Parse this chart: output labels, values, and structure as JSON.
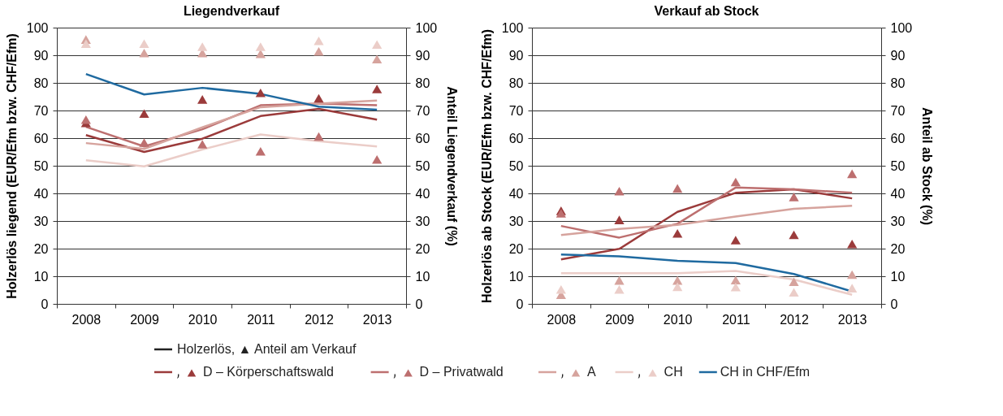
{
  "chart_data": [
    {
      "type": "line",
      "title": "Liegendverkauf",
      "ylabel": "Holzerlös liegend (EUR/Efm bzw. CHF/Efm)",
      "y2label": "Anteil Liegendverkauf (%)",
      "legend_title": "Holzerlös, ▲ Anteil am Verkauf",
      "legend": "bottom",
      "grid": "y",
      "line_style": "solid",
      "categories": [
        "2008",
        "2009",
        "2010",
        "2011",
        "2012",
        "2013"
      ],
      "ylim": [
        0,
        100
      ],
      "yticks": [
        0,
        10,
        20,
        30,
        40,
        50,
        60,
        70,
        80,
        90,
        100
      ],
      "y2lim": [
        0,
        100
      ],
      "y2ticks": [
        0,
        10,
        20,
        30,
        40,
        50,
        60,
        70,
        80,
        90,
        100
      ],
      "series": [
        {
          "name": "D – Körperschaftswald",
          "type": "line",
          "marker": "none",
          "color": "#9b3b3b",
          "values": [
            61.1,
            55.0,
            59.8,
            68.0,
            70.6,
            66.7
          ]
        },
        {
          "name": "D – Privatwald",
          "type": "line",
          "marker": "none",
          "color": "#bd6f6f",
          "values": [
            64.1,
            57.0,
            63.2,
            71.9,
            72.5,
            71.9
          ]
        },
        {
          "name": "A",
          "type": "line",
          "marker": "none",
          "color": "#d6a39d",
          "values": [
            58.2,
            56.1,
            63.9,
            71.2,
            72.5,
            73.6
          ]
        },
        {
          "name": "CH",
          "type": "line",
          "marker": "none",
          "color": "#ebcdc8",
          "values": [
            52.0,
            49.8,
            55.9,
            61.3,
            58.9,
            57.0
          ]
        },
        {
          "name": "CH in CHF/Efm",
          "type": "line",
          "marker": "none",
          "color": "#1f6aa0",
          "values": [
            83.2,
            75.8,
            78.2,
            76.0,
            71.4,
            70.3
          ]
        },
        {
          "type": "scatter",
          "axis": "y2",
          "marker": "triangle",
          "color": "#9b3b3b",
          "values": [
            65.5,
            68.9,
            74.0,
            76.4,
            74.4,
            77.8
          ]
        },
        {
          "type": "scatter",
          "axis": "y2",
          "marker": "triangle",
          "color": "#bd6f6f",
          "values": [
            66.7,
            58.4,
            57.8,
            55.2,
            60.6,
            52.3
          ]
        },
        {
          "type": "scatter",
          "axis": "y2",
          "marker": "triangle",
          "color": "#d6a39d",
          "values": [
            95.7,
            90.8,
            90.8,
            90.5,
            91.4,
            88.6
          ]
        },
        {
          "type": "scatter",
          "axis": "y2",
          "marker": "triangle",
          "color": "#ebcdc8",
          "values": [
            94.2,
            94.2,
            93.1,
            93.1,
            95.2,
            93.9
          ]
        }
      ]
    },
    {
      "type": "line",
      "title": "Verkauf ab Stock",
      "ylabel": "Holzerlös ab Stock (EUR/Efm bzw. CHF/Efm)",
      "y2label": "Anteil ab Stock (%)",
      "legend": "bottom",
      "grid": "y",
      "line_style": "solid",
      "categories": [
        "2008",
        "2009",
        "2010",
        "2011",
        "2012",
        "2013"
      ],
      "ylim": [
        0,
        100
      ],
      "yticks": [
        0,
        10,
        20,
        30,
        40,
        50,
        60,
        70,
        80,
        90,
        100
      ],
      "y2lim": [
        0,
        100
      ],
      "y2ticks": [
        0,
        10,
        20,
        30,
        40,
        50,
        60,
        70,
        80,
        90,
        100
      ],
      "series": [
        {
          "name": "D – Körperschaftswald",
          "type": "line",
          "marker": "none",
          "color": "#9b3b3b",
          "values": [
            16.1,
            19.9,
            33.3,
            40.2,
            41.5,
            38.2
          ]
        },
        {
          "name": "D – Privatwald",
          "type": "line",
          "marker": "none",
          "color": "#bd6f6f",
          "values": [
            28.2,
            24.0,
            29.0,
            42.1,
            41.5,
            40.2
          ]
        },
        {
          "name": "A",
          "type": "line",
          "marker": "none",
          "color": "#d6a39d",
          "values": [
            24.9,
            27.1,
            28.6,
            31.6,
            34.4,
            35.5
          ]
        },
        {
          "name": "CH",
          "type": "line",
          "marker": "none",
          "color": "#ebcdc8",
          "values": [
            11.1,
            11.1,
            11.1,
            11.9,
            8.8,
            3.3
          ]
        },
        {
          "name": "CH in CHF/Efm",
          "type": "line",
          "marker": "none",
          "color": "#1f6aa0",
          "values": [
            17.9,
            17.2,
            15.6,
            14.8,
            10.8,
            4.5
          ]
        },
        {
          "type": "scatter",
          "axis": "y2",
          "marker": "triangle",
          "color": "#9b3b3b",
          "values": [
            33.7,
            30.4,
            25.5,
            23.1,
            25.0,
            21.7
          ]
        },
        {
          "type": "scatter",
          "axis": "y2",
          "marker": "triangle",
          "color": "#bd6f6f",
          "values": [
            32.8,
            40.8,
            41.8,
            44.1,
            38.7,
            47.1
          ]
        },
        {
          "type": "scatter",
          "axis": "y2",
          "marker": "triangle",
          "color": "#d6a39d",
          "values": [
            3.3,
            8.5,
            8.5,
            8.6,
            8.0,
            10.6
          ]
        },
        {
          "type": "scatter",
          "axis": "y2",
          "marker": "triangle",
          "color": "#ebcdc8",
          "values": [
            5.2,
            5.2,
            6.2,
            6.1,
            4.2,
            5.7
          ]
        }
      ]
    }
  ]
}
